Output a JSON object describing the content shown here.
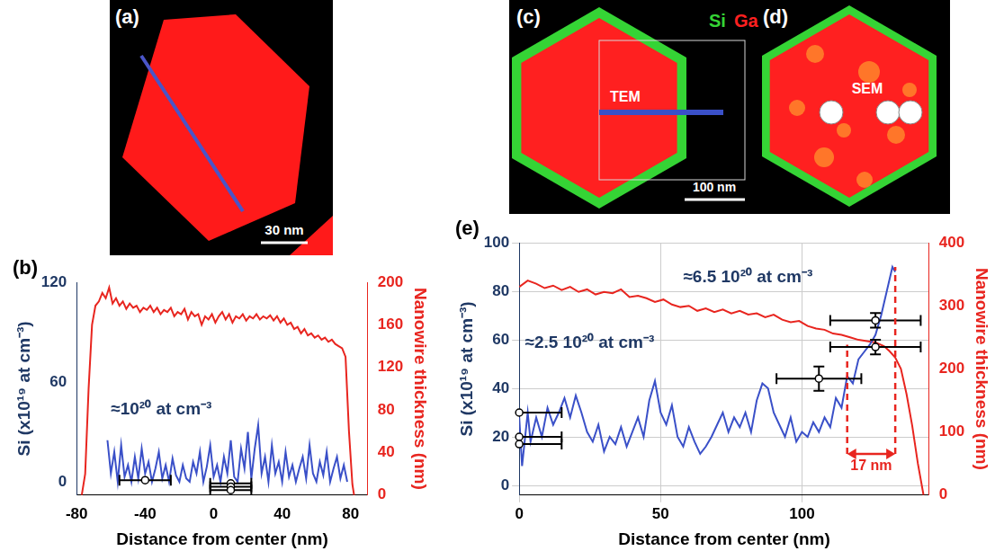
{
  "images": {
    "a": {
      "label": "(a)",
      "scale_bar": "30 nm",
      "color": "#ff1a1a"
    },
    "cd": {
      "labels": [
        "(c)",
        "(d)"
      ],
      "elements": [
        {
          "name": "Si",
          "color": "#35d435"
        },
        {
          "name": "Ga",
          "color": "#ff2020"
        }
      ],
      "tem": "TEM",
      "sem": "SEM",
      "scale_bar": "100 nm"
    }
  },
  "chart_data": [
    {
      "type": "line",
      "panel": "(b)",
      "x_label": "Distance from center (nm)",
      "y_label": "Si (x10¹⁹ at cm⁻³)",
      "y2_label": "Nanowire thickness (nm)",
      "xlim": [
        -80,
        90
      ],
      "xticks": [
        -80,
        -40,
        0,
        40,
        80
      ],
      "ylim": [
        -8,
        120
      ],
      "yticks": [
        0,
        60,
        120
      ],
      "y2lim": [
        0,
        200
      ],
      "y2ticks": [
        0,
        40,
        80,
        120,
        160,
        200
      ],
      "grid": false,
      "series": [
        {
          "color": "#3a50c8",
          "x": [
            -62,
            -60,
            -58,
            -56,
            -54,
            -52,
            -50,
            -48,
            -46,
            -44,
            -42,
            -40,
            -38,
            -36,
            -34,
            -32,
            -30,
            -28,
            -26,
            -24,
            -22,
            -20,
            -18,
            -16,
            -14,
            -12,
            -10,
            -8,
            -6,
            -4,
            -2,
            0,
            2,
            4,
            6,
            8,
            10,
            12,
            14,
            16,
            18,
            20,
            22,
            24,
            26,
            28,
            30,
            32,
            34,
            36,
            38,
            40,
            42,
            44,
            46,
            48,
            50,
            52,
            54,
            56,
            58,
            60,
            62,
            64,
            66,
            68,
            70,
            72,
            74,
            76,
            78
          ],
          "values": [
            25,
            5,
            18,
            0,
            22,
            3,
            10,
            0,
            15,
            2,
            20,
            5,
            12,
            0,
            8,
            18,
            2,
            10,
            0,
            14,
            4,
            0,
            10,
            2,
            0,
            12,
            5,
            18,
            0,
            9,
            22,
            3,
            10,
            0,
            15,
            5,
            25,
            3,
            0,
            20,
            8,
            30,
            2,
            20,
            34,
            5,
            15,
            0,
            22,
            5,
            12,
            0,
            18,
            3,
            10,
            0,
            8,
            15,
            2,
            22,
            5,
            0,
            12,
            4,
            18,
            0,
            8,
            15,
            2,
            10,
            0
          ]
        },
        {
          "color": "#e8251f",
          "axis": "y2",
          "x": [
            -77,
            -75,
            -73,
            -71,
            -69,
            -67,
            -65,
            -63,
            -61,
            -59,
            -57,
            -55,
            -53,
            -51,
            -49,
            -47,
            -45,
            -43,
            -41,
            -39,
            -37,
            -35,
            -33,
            -31,
            -29,
            -27,
            -25,
            -23,
            -21,
            -19,
            -17,
            -15,
            -13,
            -11,
            -9,
            -7,
            -5,
            -3,
            -1,
            1,
            3,
            5,
            7,
            9,
            11,
            13,
            15,
            17,
            19,
            21,
            23,
            25,
            27,
            29,
            31,
            33,
            35,
            37,
            39,
            41,
            43,
            45,
            47,
            49,
            51,
            53,
            55,
            57,
            59,
            61,
            63,
            65,
            67,
            69,
            71,
            73,
            75,
            77,
            79,
            81,
            82
          ],
          "values": [
            0,
            20,
            100,
            160,
            178,
            182,
            190,
            185,
            195,
            180,
            185,
            178,
            182,
            175,
            180,
            176,
            178,
            172,
            176,
            174,
            178,
            172,
            176,
            170,
            174,
            172,
            176,
            168,
            172,
            170,
            175,
            165,
            172,
            168,
            170,
            160,
            168,
            165,
            170,
            162,
            168,
            172,
            165,
            170,
            162,
            168,
            166,
            170,
            164,
            168,
            166,
            170,
            165,
            168,
            166,
            169,
            164,
            168,
            162,
            166,
            160,
            162,
            156,
            158,
            152,
            156,
            150,
            152,
            148,
            150,
            146,
            148,
            144,
            146,
            142,
            140,
            138,
            130,
            60,
            10,
            0
          ]
        }
      ],
      "measurements": [
        {
          "x": -40,
          "y": 1,
          "xerr": 15
        },
        {
          "x": 10,
          "y": -1,
          "xerr": 12
        },
        {
          "x": 10,
          "y": -3,
          "xerr": 12
        },
        {
          "x": 10,
          "y": -5,
          "xerr": 12
        }
      ],
      "annotations": [
        {
          "text": "≈10²⁰ at cm⁻³",
          "x": -60,
          "y": 38
        }
      ]
    },
    {
      "type": "line",
      "panel": "(e)",
      "x_label": "Distance from center (nm)",
      "y_label": "Si (x10¹⁹ at cm⁻³)",
      "y2_label": "Nanowire thickness (nm)",
      "xlim": [
        0,
        145
      ],
      "xticks": [
        0,
        50,
        100
      ],
      "ylim": [
        -4,
        100
      ],
      "yticks": [
        0,
        20,
        40,
        60,
        80,
        100
      ],
      "y2lim": [
        0,
        400
      ],
      "y2ticks": [
        0,
        100,
        200,
        300,
        400
      ],
      "grid": true,
      "series": [
        {
          "color": "#3a50c8",
          "x": [
            0,
            1,
            3,
            4,
            6,
            8,
            10,
            12,
            14,
            16,
            18,
            20,
            22,
            24,
            26,
            28,
            30,
            32,
            34,
            36,
            38,
            40,
            42,
            44,
            46,
            48,
            50,
            52,
            54,
            56,
            58,
            60,
            62,
            64,
            66,
            68,
            70,
            72,
            74,
            76,
            78,
            80,
            82,
            84,
            86,
            88,
            90,
            92,
            94,
            96,
            98,
            100,
            102,
            104,
            106,
            108,
            110,
            112,
            114,
            116,
            118,
            120,
            122,
            124,
            126,
            128,
            130,
            132,
            133
          ],
          "values": [
            28,
            8,
            30,
            18,
            28,
            20,
            32,
            25,
            30,
            36,
            28,
            37,
            30,
            22,
            18,
            25,
            14,
            20,
            17,
            24,
            16,
            22,
            28,
            20,
            35,
            43,
            30,
            25,
            33,
            20,
            16,
            24,
            18,
            13,
            16,
            20,
            25,
            30,
            22,
            28,
            24,
            30,
            22,
            35,
            42,
            40,
            30,
            25,
            20,
            28,
            18,
            22,
            20,
            26,
            22,
            28,
            24,
            36,
            32,
            45,
            42,
            52,
            55,
            58,
            62,
            70,
            80,
            90,
            88
          ]
        },
        {
          "color": "#e8251f",
          "axis": "y2",
          "x": [
            0,
            3,
            6,
            9,
            12,
            15,
            18,
            21,
            24,
            27,
            30,
            33,
            36,
            39,
            42,
            45,
            48,
            51,
            54,
            57,
            60,
            63,
            66,
            69,
            72,
            75,
            78,
            81,
            84,
            87,
            90,
            93,
            96,
            99,
            102,
            105,
            108,
            111,
            114,
            117,
            120,
            123,
            126,
            129,
            131,
            133,
            135,
            137,
            139,
            141,
            143
          ],
          "values": [
            330,
            340,
            335,
            328,
            332,
            325,
            330,
            322,
            326,
            318,
            322,
            320,
            326,
            314,
            316,
            312,
            306,
            310,
            302,
            298,
            300,
            292,
            296,
            290,
            294,
            288,
            292,
            286,
            288,
            282,
            286,
            278,
            274,
            276,
            268,
            264,
            262,
            256,
            254,
            250,
            246,
            244,
            242,
            236,
            228,
            218,
            200,
            160,
            110,
            50,
            0
          ]
        }
      ],
      "measurements": [
        {
          "x": 0,
          "y": 30,
          "xerr": 15
        },
        {
          "x": 0,
          "y": 20,
          "xerr": 15
        },
        {
          "x": 0,
          "y": 17,
          "xerr": 15
        },
        {
          "x": 106,
          "y": 44,
          "xerr": 15,
          "yerr": 5
        },
        {
          "x": 126,
          "y": 68,
          "xerr": 16,
          "yerr": 3
        },
        {
          "x": 126,
          "y": 57,
          "xerr": 16,
          "yerr": 3
        }
      ],
      "annotations": [
        {
          "text": "≈2.5 10²⁰ at cm⁻³",
          "x": 2,
          "y": 55
        },
        {
          "text": "≈6.5 10²⁰ at cm⁻³",
          "x": 58,
          "y": 82
        }
      ],
      "span": {
        "x": [
          116,
          133
        ],
        "y": 13,
        "y_top": [
          58,
          90
        ],
        "label": "17 nm"
      }
    }
  ]
}
